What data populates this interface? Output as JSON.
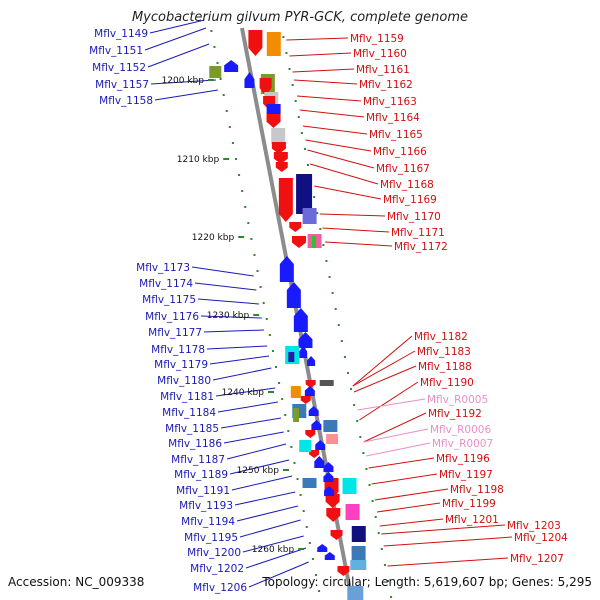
{
  "title": "Mycobacterium gilvum PYR-GCK, complete genome",
  "accession": "Accession: NC_009338",
  "topology": "Topology: circular; Length: 5,619,607 bp; Genes: 5,295",
  "scale_labels": [
    "1200 kbp",
    "1210 kbp",
    "1220 kbp",
    "1230 kbp",
    "1240 kbp",
    "1250 kbp",
    "1260 kbp"
  ],
  "colors": {
    "forward_label": "#d11010",
    "reverse_label": "#1a1ab8",
    "rna_label": "#e98fc6",
    "backbone": "#8c8c8c",
    "tick": "#2c8a2c"
  },
  "left_labels": [
    "Mflv_1149",
    "Mflv_1151",
    "Mflv_1152",
    "Mflv_1157",
    "Mflv_1158",
    "Mflv_1173",
    "Mflv_1174",
    "Mflv_1175",
    "Mflv_1176",
    "Mflv_1177",
    "Mflv_1178",
    "Mflv_1179",
    "Mflv_1180",
    "Mflv_1181",
    "Mflv_1184",
    "Mflv_1185",
    "Mflv_1186",
    "Mflv_1187",
    "Mflv_1189",
    "Mflv_1191",
    "Mflv_1193",
    "Mflv_1194",
    "Mflv_1195",
    "Mflv_1200",
    "Mflv_1202",
    "Mflv_1206"
  ],
  "right_labels": [
    "Mflv_1159",
    "Mflv_1160",
    "Mflv_1161",
    "Mflv_1162",
    "Mflv_1163",
    "Mflv_1164",
    "Mflv_1165",
    "Mflv_1166",
    "Mflv_1167",
    "Mflv_1168",
    "Mflv_1169",
    "Mflv_1170",
    "Mflv_1171",
    "Mflv_1172",
    "Mflv_1182",
    "Mflv_1183",
    "Mflv_1188",
    "Mflv_1190",
    "Mflv_R0005",
    "Mflv_1192",
    "Mflv_R0006",
    "Mflv_R0007",
    "Mflv_1196",
    "Mflv_1197",
    "Mflv_1198",
    "Mflv_1199",
    "Mflv_1201",
    "Mflv_1203",
    "Mflv_1204",
    "Mflv_1207"
  ]
}
